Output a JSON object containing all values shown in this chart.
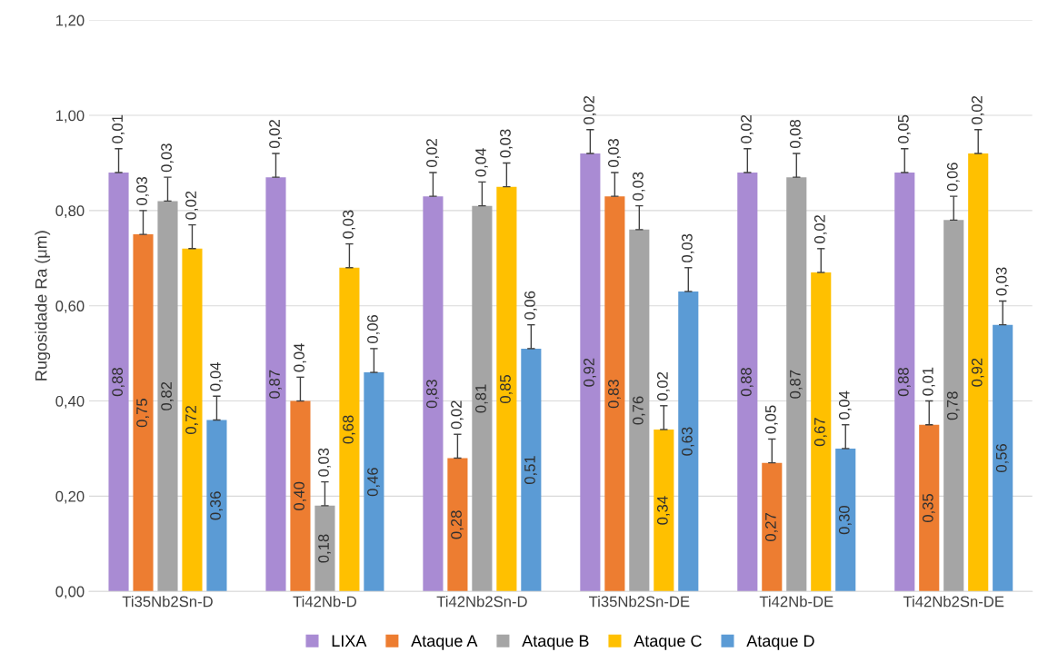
{
  "chart_data": {
    "type": "bar",
    "ylabel": "Rugosidade Ra (μm)",
    "categories": [
      "Ti35Nb2Sn-D",
      "Ti42Nb-D",
      "Ti42Nb2Sn-D",
      "Ti35Nb2Sn-DE",
      "Ti42Nb-DE",
      "Ti42Nb2Sn-DE"
    ],
    "series": [
      {
        "name": "LIXA",
        "color": "#a98bd3",
        "values": [
          0.88,
          0.87,
          0.83,
          0.92,
          0.88,
          0.88
        ],
        "errors": [
          0.05,
          0.05,
          0.05,
          0.05,
          0.05,
          0.05
        ],
        "value_labels": [
          "0,88",
          "0,87",
          "0,83",
          "0,92",
          "0,88",
          "0,88"
        ]
      },
      {
        "name": "Ataque A",
        "color": "#ed7d31",
        "values": [
          0.75,
          0.4,
          0.28,
          0.83,
          0.27,
          0.35
        ],
        "errors": [
          0.05,
          0.05,
          0.05,
          0.05,
          0.05,
          0.05
        ],
        "value_labels": [
          "0,75",
          "0,40",
          "0,28",
          "0,83",
          "0,27",
          "0,35"
        ]
      },
      {
        "name": "Ataque B",
        "color": "#a5a5a5",
        "values": [
          0.82,
          0.18,
          0.81,
          0.76,
          0.87,
          0.78
        ],
        "errors": [
          0.05,
          0.05,
          0.05,
          0.05,
          0.05,
          0.05
        ],
        "value_labels": [
          "0,82",
          "0,18",
          "0,81",
          "0,76",
          "0,87",
          "0,78"
        ]
      },
      {
        "name": "Ataque C",
        "color": "#ffc000",
        "values": [
          0.72,
          0.68,
          0.85,
          0.34,
          0.67,
          0.92
        ],
        "errors": [
          0.05,
          0.05,
          0.05,
          0.05,
          0.05,
          0.05
        ],
        "value_labels": [
          "0,72",
          "0,68",
          "0,85",
          "0,34",
          "0,67",
          "0,92"
        ]
      },
      {
        "name": "Ataque D",
        "color": "#5b9bd5",
        "values": [
          0.36,
          0.46,
          0.51,
          0.63,
          0.3,
          0.56
        ],
        "errors": [
          0.05,
          0.05,
          0.05,
          0.05,
          0.05,
          0.05
        ],
        "value_labels": [
          "0,36",
          "0,46",
          "0,51",
          "0,63",
          "0,30",
          "0,56"
        ]
      }
    ],
    "annotations": [
      "0,01",
      "0,02",
      "0,02",
      "0,02",
      "0,02",
      "0,05",
      "0,03",
      "0,04",
      "0,02",
      "0,03",
      "0,05",
      "0,01",
      "0,03",
      "0,03",
      "0,04",
      "0,03",
      "0,08",
      "0,06",
      "0,02",
      "0,03",
      "0,03",
      "0,02",
      "0,02",
      "0,02",
      "0,04",
      "0,06",
      "0,06",
      "0,03",
      "0,04",
      "0,03"
    ],
    "ylim": [
      0,
      1.2
    ],
    "yticks": [
      {
        "value": 0,
        "label": "0,00"
      },
      {
        "value": 0.2,
        "label": "0,20"
      },
      {
        "value": 0.4,
        "label": "0,40"
      },
      {
        "value": 0.6,
        "label": "0,60"
      },
      {
        "value": 0.8,
        "label": "0,80"
      },
      {
        "value": 1.0,
        "label": "1,00"
      },
      {
        "value": 1.2,
        "label": "1,20"
      }
    ],
    "grid": "y",
    "legend": "bottom"
  }
}
